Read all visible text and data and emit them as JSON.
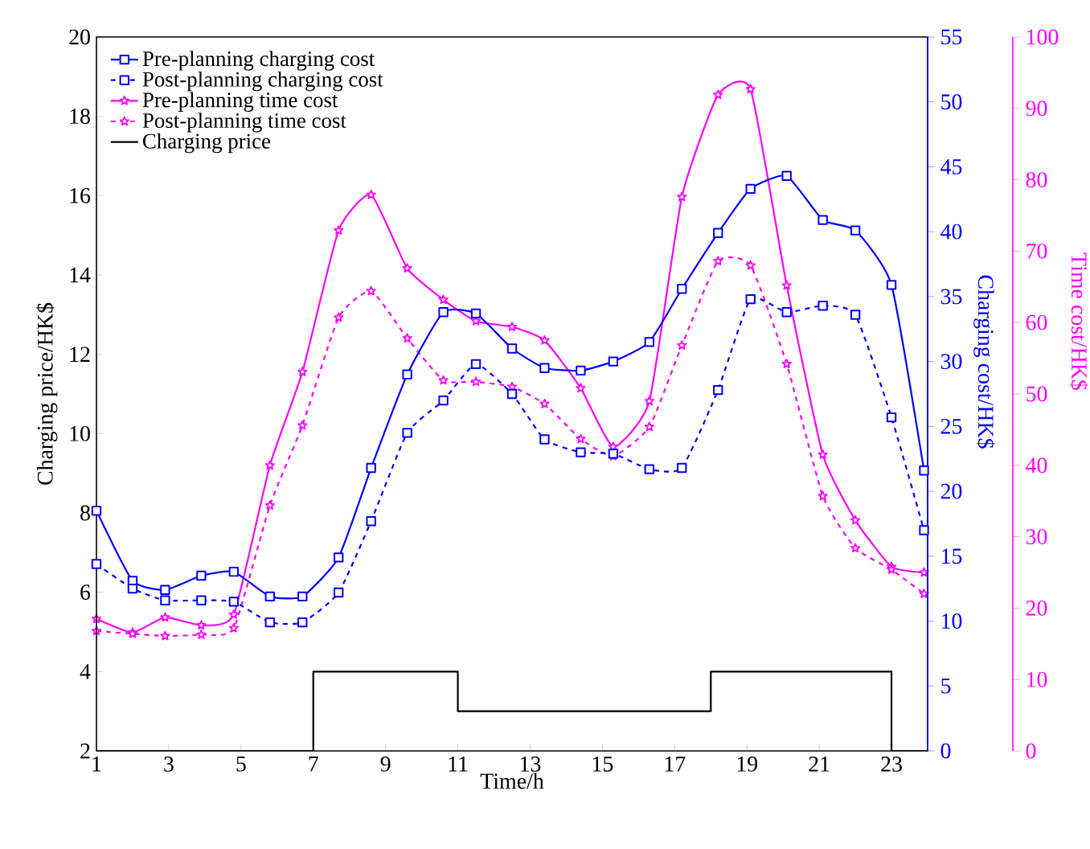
{
  "chart_data": {
    "type": "line",
    "xlabel": "Time/h",
    "ylabel": "Charging price/HK$",
    "y2label": "Charging cost/HK$",
    "y3label": "Time cost/HK$",
    "x": [
      1,
      2.0,
      2.9,
      3.9,
      4.8,
      5.8,
      6.7,
      7.7,
      8.6,
      9.6,
      10.6,
      11.5,
      12.5,
      13.4,
      14.4,
      15.3,
      16.3,
      17.2,
      18.2,
      19.1,
      20.1,
      21.1,
      22.0,
      23.0,
      23.9
    ],
    "xlim": [
      1,
      24
    ],
    "xticks": [
      1,
      3,
      5,
      7,
      9,
      11,
      13,
      15,
      17,
      19,
      21,
      23
    ],
    "ylim": [
      2,
      20
    ],
    "yticks": [
      2,
      4,
      6,
      8,
      10,
      12,
      14,
      16,
      18,
      20
    ],
    "y2lim": [
      0,
      55
    ],
    "y2ticks": [
      0,
      5,
      10,
      15,
      20,
      25,
      30,
      35,
      40,
      45,
      50,
      55
    ],
    "y3lim": [
      0,
      100
    ],
    "y3ticks": [
      0,
      10,
      20,
      30,
      40,
      50,
      60,
      70,
      80,
      90,
      100
    ],
    "legend": "top left",
    "series": [
      {
        "name": "Pre-planning charging cost",
        "color": "#0000ff",
        "axis": "y2",
        "marker": "square",
        "line_style": "solid",
        "values": [
          18.5,
          13.1,
          12.4,
          13.5,
          13.8,
          11.9,
          11.9,
          14.9,
          21.8,
          29.0,
          33.8,
          33.7,
          31.0,
          29.5,
          29.3,
          30.0,
          31.5,
          35.6,
          39.9,
          43.3,
          44.3,
          40.9,
          40.1,
          35.9,
          21.6
        ]
      },
      {
        "name": "Post-planning charging cost",
        "color": "#0000ff",
        "axis": "y2",
        "marker": "square",
        "line_style": "dashed",
        "values": [
          14.4,
          12.5,
          11.6,
          11.6,
          11.5,
          9.9,
          9.9,
          12.2,
          17.7,
          24.5,
          27.0,
          29.8,
          27.5,
          24.0,
          23.0,
          22.9,
          21.7,
          21.8,
          27.8,
          34.8,
          33.8,
          34.3,
          33.6,
          25.7,
          17.0
        ]
      },
      {
        "name": "Pre-planning time cost",
        "color": "#ff00ff",
        "axis": "y3",
        "marker": "star",
        "line_style": "solid",
        "values": [
          18.5,
          16.6,
          18.7,
          17.6,
          19.1,
          40.0,
          53.1,
          72.9,
          77.9,
          67.6,
          63.2,
          60.2,
          59.4,
          57.5,
          50.8,
          42.6,
          49.0,
          77.6,
          91.9,
          92.7,
          65.2,
          41.5,
          32.3,
          25.8,
          25.0
        ]
      },
      {
        "name": "Post-planning time cost",
        "color": "#ff00ff",
        "axis": "y3",
        "marker": "star",
        "line_style": "dashed",
        "values": [
          16.8,
          16.4,
          16.1,
          16.3,
          17.2,
          34.4,
          45.6,
          60.7,
          64.4,
          57.8,
          51.9,
          51.7,
          51.0,
          48.6,
          43.7,
          41.3,
          45.4,
          56.8,
          68.6,
          68.0,
          54.2,
          35.7,
          28.4,
          25.4,
          22.0
        ]
      },
      {
        "name": "Charging price",
        "color": "#000000",
        "axis": "y",
        "type": "step",
        "line_style": "solid",
        "x": [
          1,
          7,
          11,
          18,
          23,
          24
        ],
        "values": [
          2,
          4,
          3,
          4,
          2,
          2
        ]
      }
    ]
  }
}
